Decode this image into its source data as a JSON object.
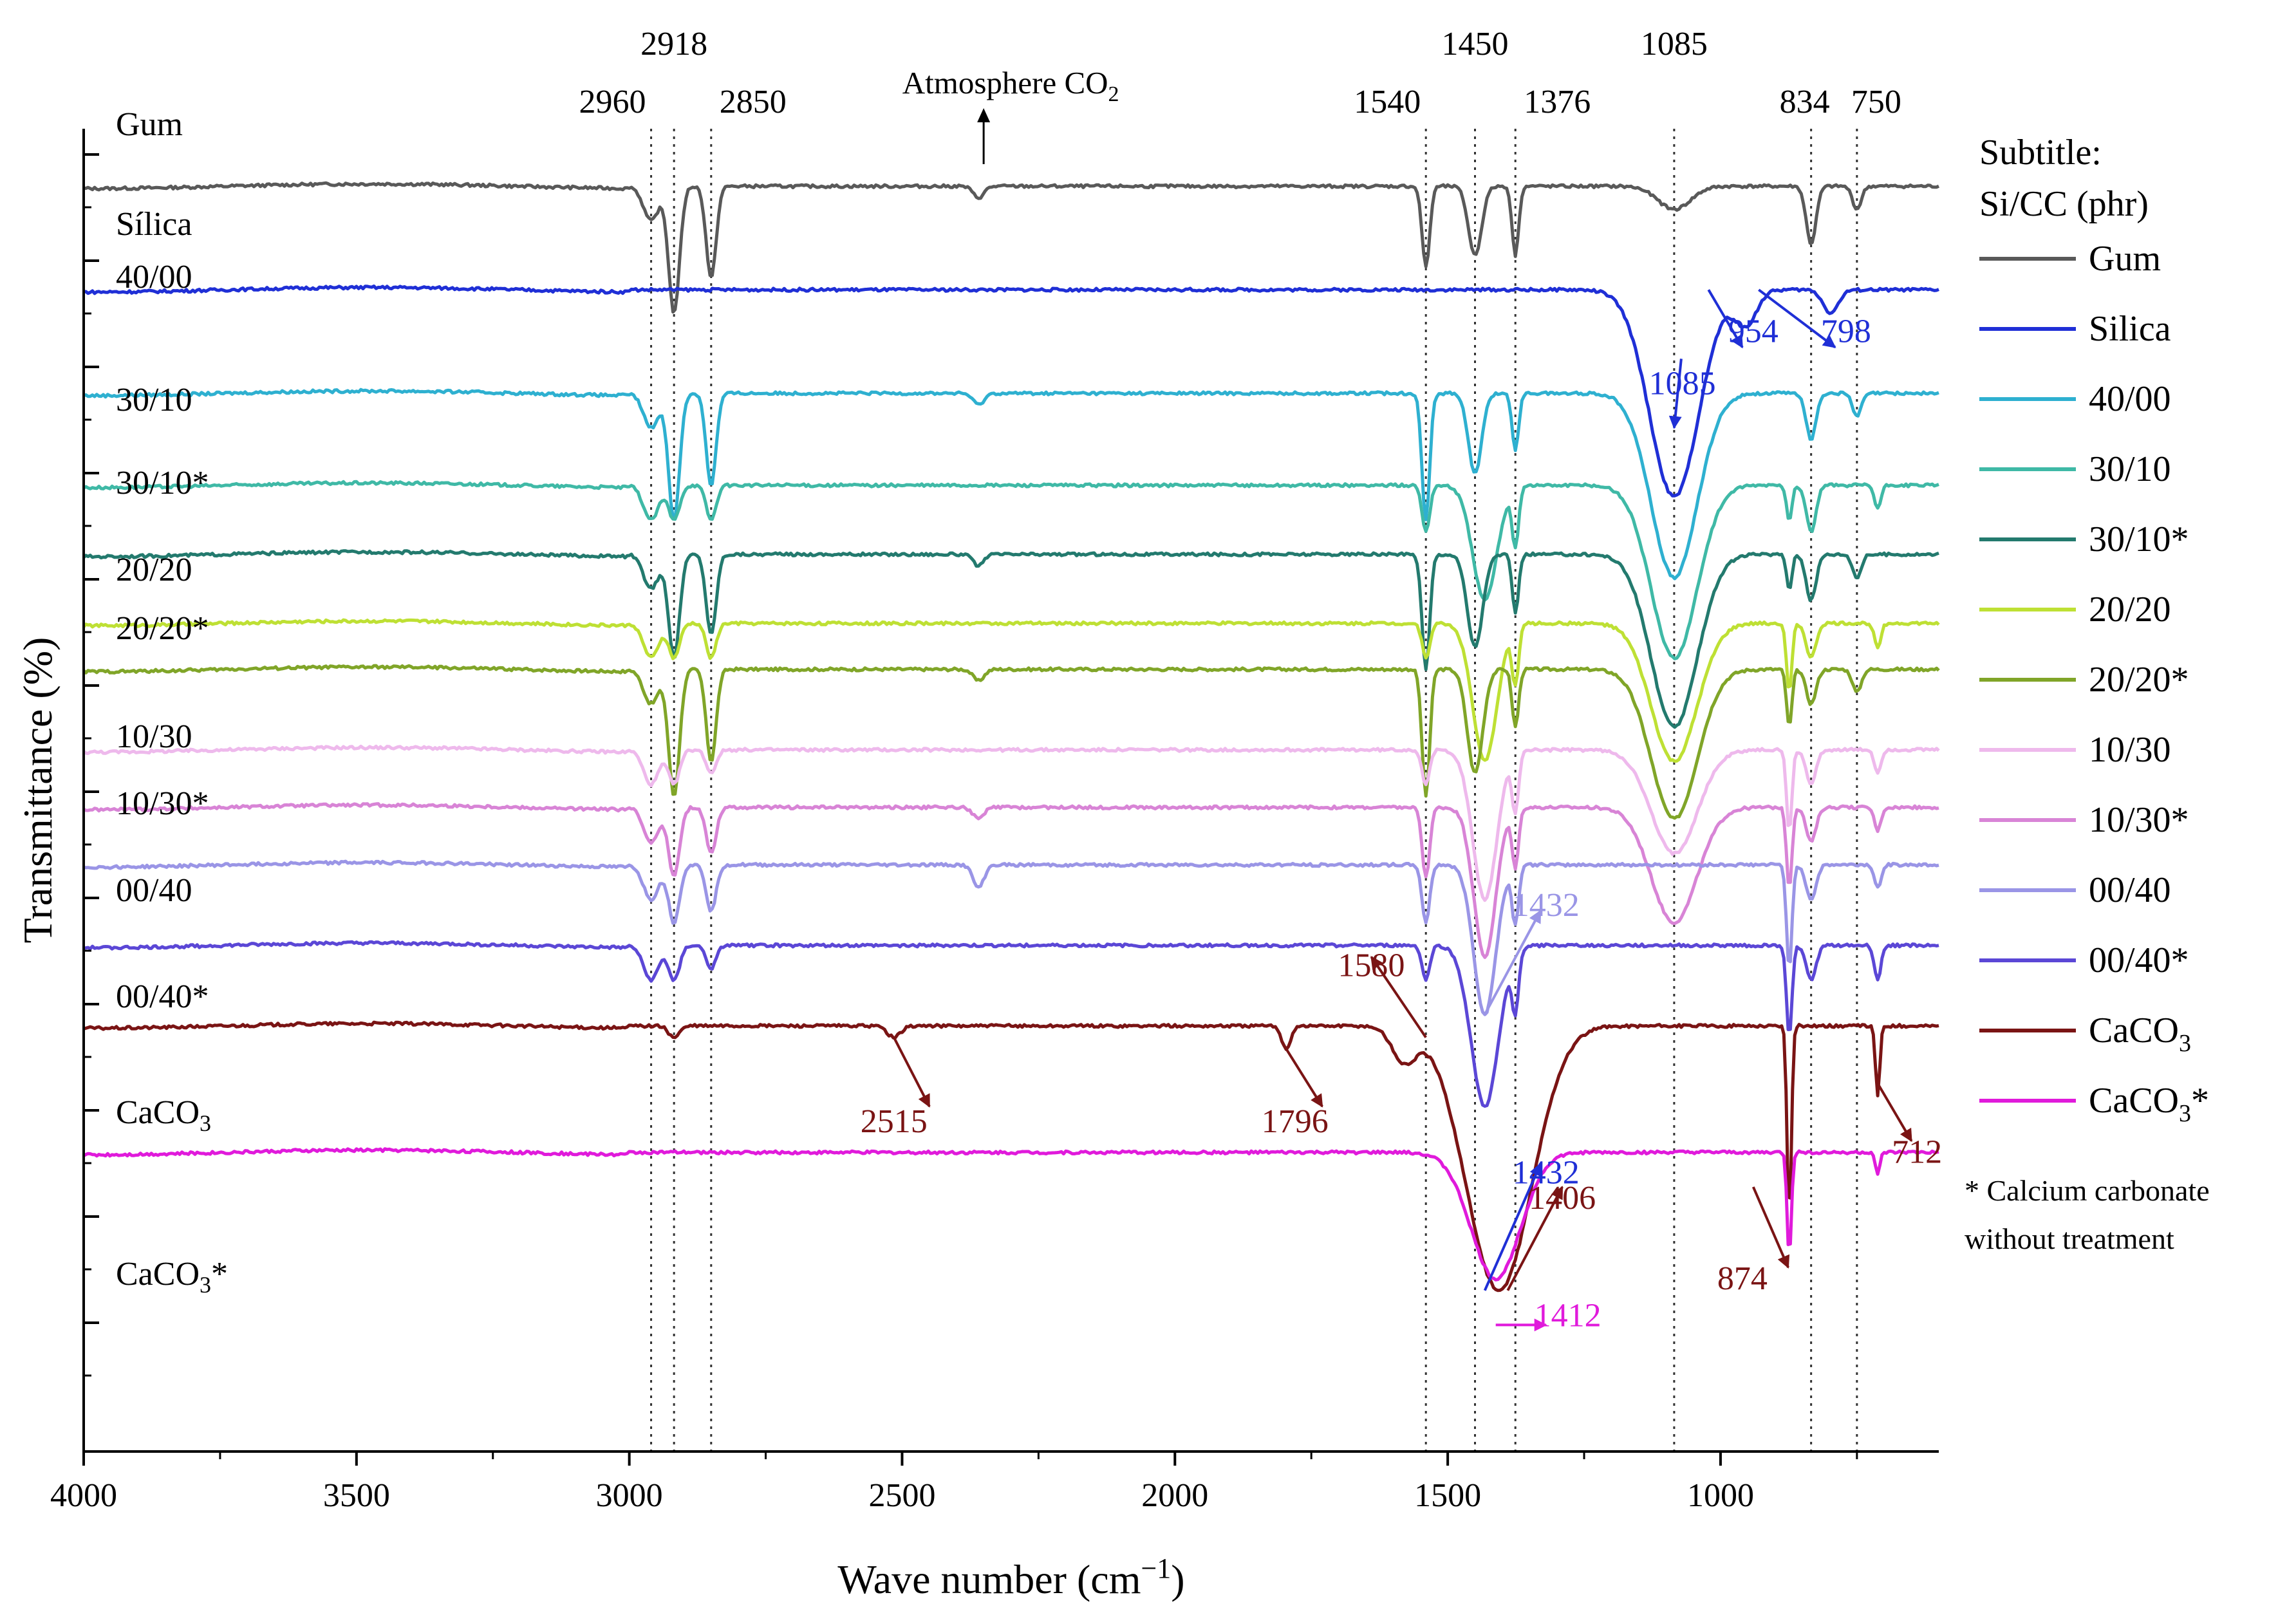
{
  "chart_data": {
    "type": "line",
    "xlabel_main": "Wave number (cm",
    "xlabel_sup": "−1",
    "xlabel_close": ")",
    "ylabel": "Transmittance (%)",
    "xlim": [
      4000,
      600
    ],
    "x_ticks": [
      4000,
      3500,
      3000,
      2500,
      2000,
      1500,
      1000
    ],
    "ylim": [
      -10,
      105
    ],
    "reference_lines": [
      {
        "x": 2960,
        "label": "2960",
        "label_row": "low"
      },
      {
        "x": 2918,
        "label": "2918",
        "label_row": "high"
      },
      {
        "x": 2850,
        "label": "2850",
        "label_row": "low"
      },
      {
        "x": 1540,
        "label": "1540",
        "label_row": "low"
      },
      {
        "x": 1450,
        "label": "1450",
        "label_row": "high"
      },
      {
        "x": 1376,
        "label": "1376",
        "label_row": "low"
      },
      {
        "x": 1085,
        "label": "1085",
        "label_row": "high"
      },
      {
        "x": 834,
        "label": "834",
        "label_row": "low"
      },
      {
        "x": 750,
        "label": "750",
        "label_row": "low"
      }
    ],
    "atmosphere_note": {
      "text": "Atmosphere CO",
      "sub": "2",
      "x": 2360
    },
    "legend": {
      "position": "right",
      "title_line1": "Subtitle:",
      "title_line2": "Si/CC (phr)",
      "note_line1": "* Calcium carbonate",
      "note_line2": "without treatment"
    },
    "series": [
      {
        "name": "Gum",
        "label": "Gum",
        "color": "#595959",
        "baseline": 100,
        "peaks": [
          [
            2960,
            3,
            14
          ],
          [
            2918,
            11,
            10
          ],
          [
            2850,
            8,
            9
          ],
          [
            2360,
            1,
            10
          ],
          [
            1540,
            7,
            7
          ],
          [
            1450,
            6,
            12
          ],
          [
            1376,
            6,
            6
          ],
          [
            1085,
            2,
            30
          ],
          [
            834,
            5,
            9
          ],
          [
            750,
            2,
            8
          ]
        ]
      },
      {
        "name": "Silica",
        "label": "Sílica",
        "color": "#1f2fd6",
        "baseline": 91,
        "peaks": [
          [
            1085,
            18,
            45
          ],
          [
            954,
            3,
            20
          ],
          [
            798,
            2,
            14
          ]
        ]
      },
      {
        "name": "40/00",
        "label": "40/00",
        "color": "#2eb0d0",
        "baseline": 82,
        "peaks": [
          [
            2960,
            3,
            14
          ],
          [
            2918,
            11,
            10
          ],
          [
            2850,
            8,
            9
          ],
          [
            2360,
            1,
            10
          ],
          [
            1540,
            11,
            7
          ],
          [
            1450,
            7,
            12
          ],
          [
            1376,
            5,
            6
          ],
          [
            1085,
            16,
            42
          ],
          [
            834,
            4,
            9
          ],
          [
            750,
            2,
            8
          ]
        ]
      },
      {
        "name": "30/10",
        "label": "30/10",
        "color": "#3fb9a6",
        "baseline": 74,
        "peaks": [
          [
            2960,
            3,
            14
          ],
          [
            2918,
            3,
            10
          ],
          [
            2850,
            3,
            9
          ],
          [
            1540,
            4,
            7
          ],
          [
            1432,
            10,
            22
          ],
          [
            1376,
            5,
            6
          ],
          [
            1085,
            15,
            42
          ],
          [
            874,
            3,
            5
          ],
          [
            834,
            4,
            9
          ],
          [
            712,
            2,
            6
          ]
        ]
      },
      {
        "name": "30/10*",
        "label": "30/10*",
        "color": "#237a6e",
        "baseline": 68,
        "peaks": [
          [
            2960,
            3,
            14
          ],
          [
            2918,
            9,
            10
          ],
          [
            2850,
            7,
            9
          ],
          [
            2360,
            1,
            10
          ],
          [
            1540,
            10,
            7
          ],
          [
            1450,
            8,
            14
          ],
          [
            1376,
            5,
            6
          ],
          [
            1085,
            15,
            42
          ],
          [
            874,
            3,
            5
          ],
          [
            834,
            4,
            9
          ],
          [
            750,
            2,
            8
          ]
        ]
      },
      {
        "name": "20/20",
        "label": "20/20",
        "color": "#bee034",
        "baseline": 62,
        "peaks": [
          [
            2960,
            3,
            14
          ],
          [
            2918,
            3,
            10
          ],
          [
            2850,
            3,
            9
          ],
          [
            1540,
            3,
            7
          ],
          [
            1432,
            12,
            22
          ],
          [
            1376,
            5,
            6
          ],
          [
            1085,
            12,
            42
          ],
          [
            874,
            6,
            5
          ],
          [
            834,
            3,
            9
          ],
          [
            712,
            2,
            6
          ]
        ]
      },
      {
        "name": "20/20*",
        "label": "20/20",
        "label_star": "*",
        "color": "#80a528",
        "baseline": 58,
        "peaks": [
          [
            2960,
            3,
            14
          ],
          [
            2918,
            11,
            10
          ],
          [
            2850,
            8,
            9
          ],
          [
            2360,
            1,
            10
          ],
          [
            1540,
            11,
            7
          ],
          [
            1450,
            9,
            14
          ],
          [
            1376,
            5,
            6
          ],
          [
            1085,
            13,
            42
          ],
          [
            874,
            5,
            5
          ],
          [
            834,
            3,
            9
          ],
          [
            750,
            2,
            8
          ]
        ]
      },
      {
        "name": "10/30",
        "label": "10/30",
        "color": "#eeb9ec",
        "baseline": 51,
        "peaks": [
          [
            2960,
            3,
            14
          ],
          [
            2918,
            3,
            10
          ],
          [
            2850,
            2,
            9
          ],
          [
            1540,
            3,
            7
          ],
          [
            1432,
            13,
            22
          ],
          [
            1376,
            5,
            6
          ],
          [
            1085,
            9,
            42
          ],
          [
            874,
            7,
            5
          ],
          [
            834,
            3,
            9
          ],
          [
            712,
            2,
            6
          ]
        ]
      },
      {
        "name": "10/30*",
        "label": "10/30*",
        "color": "#d884d6",
        "baseline": 46,
        "peaks": [
          [
            2960,
            3,
            14
          ],
          [
            2918,
            6,
            10
          ],
          [
            2850,
            4,
            9
          ],
          [
            2360,
            1,
            10
          ],
          [
            1540,
            6,
            7
          ],
          [
            1432,
            13,
            20
          ],
          [
            1376,
            5,
            6
          ],
          [
            1085,
            10,
            42
          ],
          [
            874,
            7,
            5
          ],
          [
            834,
            3,
            9
          ],
          [
            712,
            2,
            6
          ]
        ]
      },
      {
        "name": "00/40",
        "label": "00/40",
        "color": "#9a95e6",
        "baseline": 41,
        "peaks": [
          [
            2960,
            3,
            14
          ],
          [
            2918,
            5,
            10
          ],
          [
            2850,
            4,
            9
          ],
          [
            2360,
            2,
            10
          ],
          [
            1540,
            5,
            7
          ],
          [
            1432,
            13,
            20
          ],
          [
            1376,
            5,
            6
          ],
          [
            874,
            9,
            5
          ],
          [
            834,
            3,
            9
          ],
          [
            712,
            2,
            6
          ]
        ]
      },
      {
        "name": "00/40*",
        "label": "00/40*",
        "color": "#5b47d6",
        "baseline": 34,
        "peaks": [
          [
            2960,
            3,
            14
          ],
          [
            2918,
            3,
            10
          ],
          [
            2850,
            2,
            9
          ],
          [
            1540,
            3,
            7
          ],
          [
            1432,
            14,
            25
          ],
          [
            1376,
            5,
            6
          ],
          [
            874,
            8,
            5
          ],
          [
            834,
            3,
            9
          ],
          [
            712,
            3,
            6
          ]
        ]
      },
      {
        "name": "CaCO3",
        "label": "CaCO",
        "label_sub": "3",
        "color": "#7a1414",
        "baseline": 27,
        "peaks": [
          [
            2918,
            1,
            10
          ],
          [
            2515,
            1,
            12
          ],
          [
            1796,
            2,
            8
          ],
          [
            1580,
            3,
            22
          ],
          [
            1406,
            23,
            60
          ],
          [
            874,
            17,
            4
          ],
          [
            712,
            6,
            4
          ]
        ]
      },
      {
        "name": "CaCO3*",
        "label": "CaCO",
        "label_sub": "3",
        "label_star": "*",
        "color": "#e01adb",
        "baseline": 16,
        "peaks": [
          [
            1412,
            11,
            45
          ],
          [
            874,
            9,
            4
          ],
          [
            712,
            2,
            4
          ]
        ]
      }
    ],
    "annotations": [
      {
        "text": "1085",
        "color": "#1f2fd6",
        "at": 1070,
        "dy": -26,
        "ax": 1072,
        "ay": 85,
        "bx": 1085,
        "by": 79
      },
      {
        "text": "954",
        "color": "#1f2fd6",
        "at": 940,
        "dy": -4,
        "ax": 1022,
        "ay": 91,
        "bx": 960,
        "by": 86
      },
      {
        "text": "798",
        "color": "#1f2fd6",
        "at": 770,
        "dy": -4,
        "ax": 930,
        "ay": 91,
        "bx": 790,
        "by": 86
      },
      {
        "text": "1432",
        "color": "#9a95e6",
        "at": 1320,
        "dy": 4,
        "ax": 1432,
        "ay": 28,
        "bx": 1330,
        "by": 37
      },
      {
        "text": "1580",
        "color": "#7a1414",
        "at": 1640,
        "dy": 15,
        "ax": 1540,
        "ay": 26,
        "bx": 1640,
        "by": 33
      },
      {
        "text": "1432",
        "color": "#1f2fd6",
        "at": 1320,
        "dy": 15,
        "ax": 1432,
        "ay": 4,
        "bx": 1330,
        "by": 15
      },
      {
        "text": "2515",
        "color": "#7a1414",
        "at": 2515,
        "dy": 20,
        "ax": 2515,
        "ay": 26,
        "bx": 2450,
        "by": 20
      },
      {
        "text": "1796",
        "color": "#7a1414",
        "at": 1780,
        "dy": 20,
        "ax": 1796,
        "ay": 25,
        "bx": 1730,
        "by": 20
      },
      {
        "text": "1406",
        "color": "#7a1414",
        "at": 1290,
        "dy": 17,
        "ax": 1390,
        "ay": 4,
        "bx": 1290,
        "by": 13
      },
      {
        "text": "874",
        "color": "#7a1414",
        "at": 960,
        "dy": 17,
        "ax": 940,
        "ay": 13,
        "bx": 876,
        "by": 6
      },
      {
        "text": "712",
        "color": "#7a1414",
        "at": 640,
        "dy": 17,
        "ax": 712,
        "ay": 22,
        "bx": 650,
        "by": 17
      },
      {
        "text": "1412",
        "color": "#e01adb",
        "at": 1280,
        "dy": 1,
        "ax": 1412,
        "ay": 1,
        "bx": 1320,
        "by": 1
      }
    ]
  }
}
